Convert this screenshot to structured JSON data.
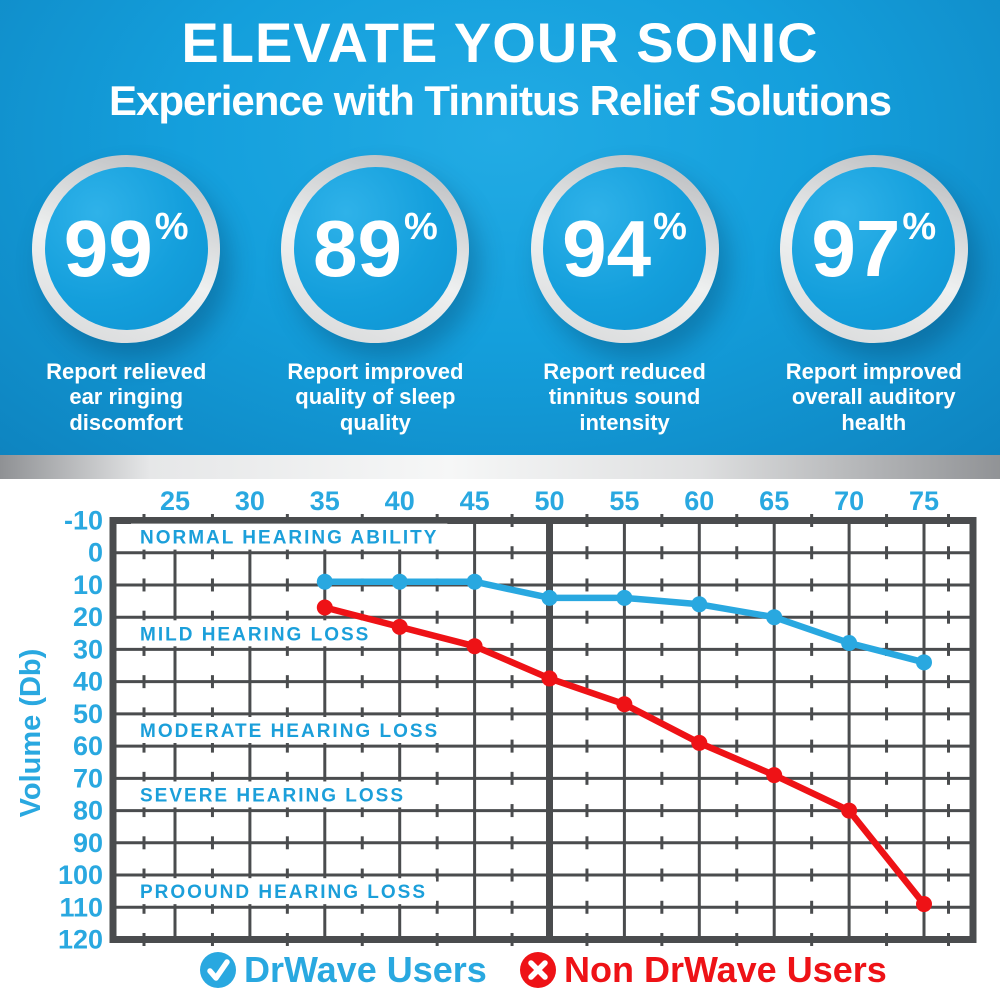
{
  "header": {
    "title_line1": "ELEVATE YOUR SONIC",
    "title_line2": "Experience with Tinnitus Relief Solutions",
    "stats": [
      {
        "value": "99",
        "unit": "%",
        "caption": "Report relieved\near ringing\ndiscomfort"
      },
      {
        "value": "89",
        "unit": "%",
        "caption": "Report improved\nquality of sleep\nquality"
      },
      {
        "value": "94",
        "unit": "%",
        "caption": "Report reduced\ntinnitus sound\nintensity"
      },
      {
        "value": "97",
        "unit": "%",
        "caption": "Report improved\noverall auditory\nhealth"
      }
    ]
  },
  "colors": {
    "accent_blue": "#29a8e0",
    "accent_red": "#ee1216",
    "grid_gray": "#4a4c4e",
    "zone_label_blue": "#1b9fda",
    "header_blue": "#149fdc",
    "white": "#ffffff"
  },
  "chart_data": {
    "type": "line",
    "title": "",
    "xlabel": "",
    "ylabel": "Volume (Db)",
    "x_axis": {
      "position": "top",
      "ticks": [
        25,
        30,
        35,
        40,
        45,
        50,
        55,
        60,
        65,
        70,
        75
      ],
      "range": [
        25,
        75
      ],
      "emphasized_gridline": 50
    },
    "y_axis": {
      "label": "Volume (Db)",
      "ticks": [
        -10,
        0,
        10,
        20,
        30,
        40,
        50,
        60,
        70,
        80,
        90,
        100,
        110,
        120
      ],
      "range": [
        -10,
        120
      ],
      "direction": "increases-downward"
    },
    "grid": true,
    "x": [
      35,
      40,
      45,
      50,
      55,
      60,
      65,
      70,
      75
    ],
    "series": [
      {
        "name": "DrWave Users",
        "icon": "check-icon",
        "color": "#29a8e0",
        "values": [
          9,
          9,
          9,
          14,
          14,
          16,
          20,
          28,
          34
        ]
      },
      {
        "name": "Non DrWave Users",
        "icon": "x-icon",
        "color": "#ee1216",
        "values": [
          17,
          23,
          29,
          39,
          47,
          59,
          69,
          80,
          109
        ]
      }
    ],
    "zones": [
      {
        "label": "NORMAL HEARING ABILITY",
        "from": -10,
        "to": 0
      },
      {
        "label": "MILD HEARING LOSS",
        "from": 20,
        "to": 30
      },
      {
        "label": "MODERATE HEARING LOSS",
        "from": 50,
        "to": 60
      },
      {
        "label": "SEVERE HEARING LOSS",
        "from": 70,
        "to": 80
      },
      {
        "label": "PROOUND HEARING LOSS",
        "from": 100,
        "to": 110
      }
    ],
    "legend_position": "bottom"
  }
}
